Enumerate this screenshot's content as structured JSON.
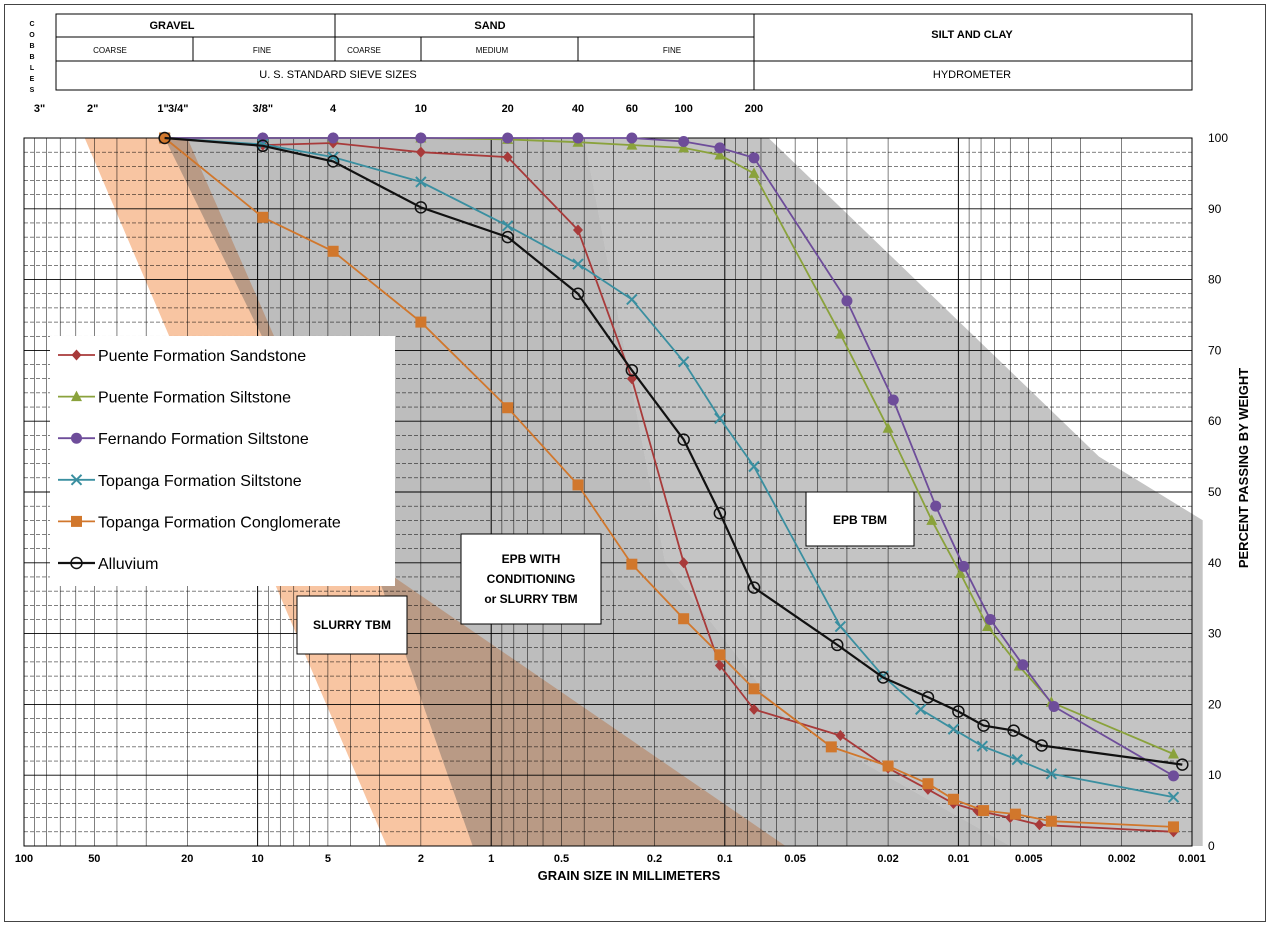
{
  "header": {
    "cobbles": "COBBLES",
    "gravel": "GRAVEL",
    "sand": "SAND",
    "silt_clay": "SILT AND CLAY",
    "gravel_coarse": "COARSE",
    "gravel_fine": "FINE",
    "sand_coarse": "COARSE",
    "sand_medium": "MEDIUM",
    "sand_fine": "FINE",
    "sieve_sizes": "U. S. STANDARD  SIEVE SIZES",
    "hydrometer": "HYDROMETER"
  },
  "sieve_labels": [
    {
      "label": "3\"",
      "mm": 76.2
    },
    {
      "label": "2\"",
      "mm": 50.8
    },
    {
      "label": "1\"",
      "mm": 25.4
    },
    {
      "label": "3/4\"",
      "mm": 19.05
    },
    {
      "label": "3/8\"",
      "mm": 9.5
    },
    {
      "label": "4",
      "mm": 4.75
    },
    {
      "label": "10",
      "mm": 2.0
    },
    {
      "label": "20",
      "mm": 0.85
    },
    {
      "label": "40",
      "mm": 0.425
    },
    {
      "label": "60",
      "mm": 0.25
    },
    {
      "label": "100",
      "mm": 0.15
    },
    {
      "label": "200",
      "mm": 0.075
    }
  ],
  "chart_data": {
    "type": "line",
    "xlabel": "GRAIN SIZE IN MILLIMETERS",
    "ylabel": "PERCENT PASSING BY WEIGHT",
    "x_scale": "log",
    "x_reversed": true,
    "xlim": [
      100,
      0.001
    ],
    "ylim": [
      0,
      100
    ],
    "x_ticks": [
      {
        "label": "100",
        "v": 100
      },
      {
        "label": "50",
        "v": 50
      },
      {
        "label": "20",
        "v": 20
      },
      {
        "label": "10",
        "v": 10
      },
      {
        "label": "5",
        "v": 5
      },
      {
        "label": "2",
        "v": 2
      },
      {
        "label": "1",
        "v": 1
      },
      {
        "label": "0.5",
        "v": 0.5
      },
      {
        "label": "0.2",
        "v": 0.2
      },
      {
        "label": "0.1",
        "v": 0.1
      },
      {
        "label": "0.05",
        "v": 0.05
      },
      {
        "label": "0.02",
        "v": 0.02
      },
      {
        "label": "0.01",
        "v": 0.01
      },
      {
        "label": "0.005",
        "v": 0.005
      },
      {
        "label": "0.002",
        "v": 0.002
      },
      {
        "label": "0.001",
        "v": 0.001
      }
    ],
    "y_ticks": [
      0,
      10,
      20,
      30,
      40,
      50,
      60,
      70,
      80,
      90,
      100
    ],
    "zones": [
      {
        "label": "SLURRY TBM",
        "color": "#f8c5a2",
        "points": [
          [
            55,
            100
          ],
          [
            20,
            100
          ],
          [
            3.2,
            40
          ],
          [
            0.055,
            0
          ],
          [
            2.8,
            0
          ]
        ]
      },
      {
        "label": "EPB WITH CONDITIONING or SLURRY TBM",
        "color": "#5a5a5a",
        "opacity": 0.4,
        "points": [
          [
            25,
            100
          ],
          [
            0.4,
            100
          ],
          [
            0.18,
            40
          ],
          [
            0.055,
            18
          ],
          [
            0.006,
            0
          ],
          [
            1.2,
            0
          ],
          [
            3.2,
            40
          ]
        ]
      },
      {
        "label": "EPB TBM",
        "color": "#6b6b6b",
        "opacity": 0.4,
        "points": [
          [
            0.4,
            100
          ],
          [
            0.065,
            100
          ],
          [
            0.0025,
            55
          ],
          [
            0.0009,
            46
          ],
          [
            0.0009,
            0
          ],
          [
            0.006,
            0
          ],
          [
            0.055,
            18
          ],
          [
            0.18,
            40
          ]
        ]
      }
    ],
    "zone_labels": {
      "slurry": "SLURRY TBM",
      "epb_cond_1": "EPB WITH",
      "epb_cond_2": "CONDITIONING",
      "epb_cond_3": "or SLURRY TBM",
      "epb": "EPB TBM"
    },
    "series": [
      {
        "name": "Puente Formation Sandstone",
        "color": "#a83a3a",
        "marker": "diamond",
        "points": [
          [
            25,
            100
          ],
          [
            9.5,
            99
          ],
          [
            4.75,
            99.3
          ],
          [
            2,
            98
          ],
          [
            0.85,
            97.3
          ],
          [
            0.425,
            87
          ],
          [
            0.25,
            66
          ],
          [
            0.15,
            40
          ],
          [
            0.105,
            25.5
          ],
          [
            0.075,
            19.3
          ],
          [
            0.032,
            15.6
          ],
          [
            0.02,
            11
          ],
          [
            0.0135,
            8
          ],
          [
            0.0105,
            6
          ],
          [
            0.0083,
            5
          ],
          [
            0.006,
            4
          ],
          [
            0.0045,
            3
          ],
          [
            0.0012,
            2
          ]
        ]
      },
      {
        "name": "Puente Formation Siltstone",
        "color": "#8aa23c",
        "marker": "triangle",
        "points": [
          [
            25,
            100
          ],
          [
            9.5,
            100
          ],
          [
            4.75,
            100
          ],
          [
            2,
            100
          ],
          [
            0.85,
            99.8
          ],
          [
            0.425,
            99.4
          ],
          [
            0.25,
            99
          ],
          [
            0.15,
            98.6
          ],
          [
            0.105,
            97.6
          ],
          [
            0.075,
            95
          ],
          [
            0.032,
            72.3
          ],
          [
            0.02,
            59
          ],
          [
            0.013,
            46
          ],
          [
            0.0098,
            38.5
          ],
          [
            0.0075,
            31
          ],
          [
            0.0055,
            25.4
          ],
          [
            0.004,
            20.3
          ],
          [
            0.0012,
            13
          ]
        ]
      },
      {
        "name": "Fernando Formation Siltstone",
        "color": "#6e4d9a",
        "marker": "circle",
        "points": [
          [
            25,
            100
          ],
          [
            9.5,
            100
          ],
          [
            4.75,
            100
          ],
          [
            2,
            100
          ],
          [
            0.85,
            100
          ],
          [
            0.425,
            100
          ],
          [
            0.25,
            100
          ],
          [
            0.15,
            99.5
          ],
          [
            0.105,
            98.6
          ],
          [
            0.075,
            97.2
          ],
          [
            0.03,
            77
          ],
          [
            0.019,
            63
          ],
          [
            0.0125,
            48
          ],
          [
            0.0095,
            39.5
          ],
          [
            0.0073,
            32
          ],
          [
            0.0053,
            25.6
          ],
          [
            0.0039,
            19.7
          ],
          [
            0.0012,
            9.9
          ]
        ]
      },
      {
        "name": "Topanga Formation Siltstone",
        "color": "#3a8fa0",
        "marker": "x",
        "points": [
          [
            25,
            100
          ],
          [
            9.5,
            99.1
          ],
          [
            4.75,
            97.3
          ],
          [
            2,
            93.8
          ],
          [
            0.85,
            87.6
          ],
          [
            0.425,
            82.2
          ],
          [
            0.25,
            77.2
          ],
          [
            0.15,
            68.4
          ],
          [
            0.105,
            60.4
          ],
          [
            0.075,
            53.6
          ],
          [
            0.032,
            31
          ],
          [
            0.021,
            24
          ],
          [
            0.0145,
            19.3
          ],
          [
            0.0105,
            16.5
          ],
          [
            0.0079,
            14.1
          ],
          [
            0.0056,
            12.2
          ],
          [
            0.004,
            10.2
          ],
          [
            0.0012,
            6.9
          ]
        ]
      },
      {
        "name": "Topanga Formation Conglomerate",
        "color": "#d1772c",
        "marker": "square",
        "points": [
          [
            25,
            100
          ],
          [
            9.5,
            88.8
          ],
          [
            4.75,
            84
          ],
          [
            2,
            74
          ],
          [
            0.85,
            61.9
          ],
          [
            0.425,
            51
          ],
          [
            0.25,
            39.8
          ],
          [
            0.15,
            32.1
          ],
          [
            0.105,
            27
          ],
          [
            0.075,
            22.2
          ],
          [
            0.035,
            14
          ],
          [
            0.02,
            11.3
          ],
          [
            0.0135,
            8.8
          ],
          [
            0.0105,
            6.6
          ],
          [
            0.0078,
            5
          ],
          [
            0.0057,
            4.5
          ],
          [
            0.004,
            3.5
          ],
          [
            0.0012,
            2.7
          ]
        ]
      },
      {
        "name": "Alluvium",
        "color": "#111111",
        "marker": "open-circle",
        "points": [
          [
            25,
            100
          ],
          [
            9.5,
            98.9
          ],
          [
            4.75,
            96.7
          ],
          [
            2,
            90.2
          ],
          [
            0.85,
            86
          ],
          [
            0.425,
            78
          ],
          [
            0.25,
            67.2
          ],
          [
            0.15,
            57.4
          ],
          [
            0.105,
            47
          ],
          [
            0.075,
            36.5
          ],
          [
            0.033,
            28.4
          ],
          [
            0.021,
            23.8
          ],
          [
            0.0135,
            21
          ],
          [
            0.01,
            19
          ],
          [
            0.0078,
            17
          ],
          [
            0.0058,
            16.3
          ],
          [
            0.0044,
            14.2
          ],
          [
            0.0011,
            11.5
          ]
        ]
      }
    ]
  }
}
